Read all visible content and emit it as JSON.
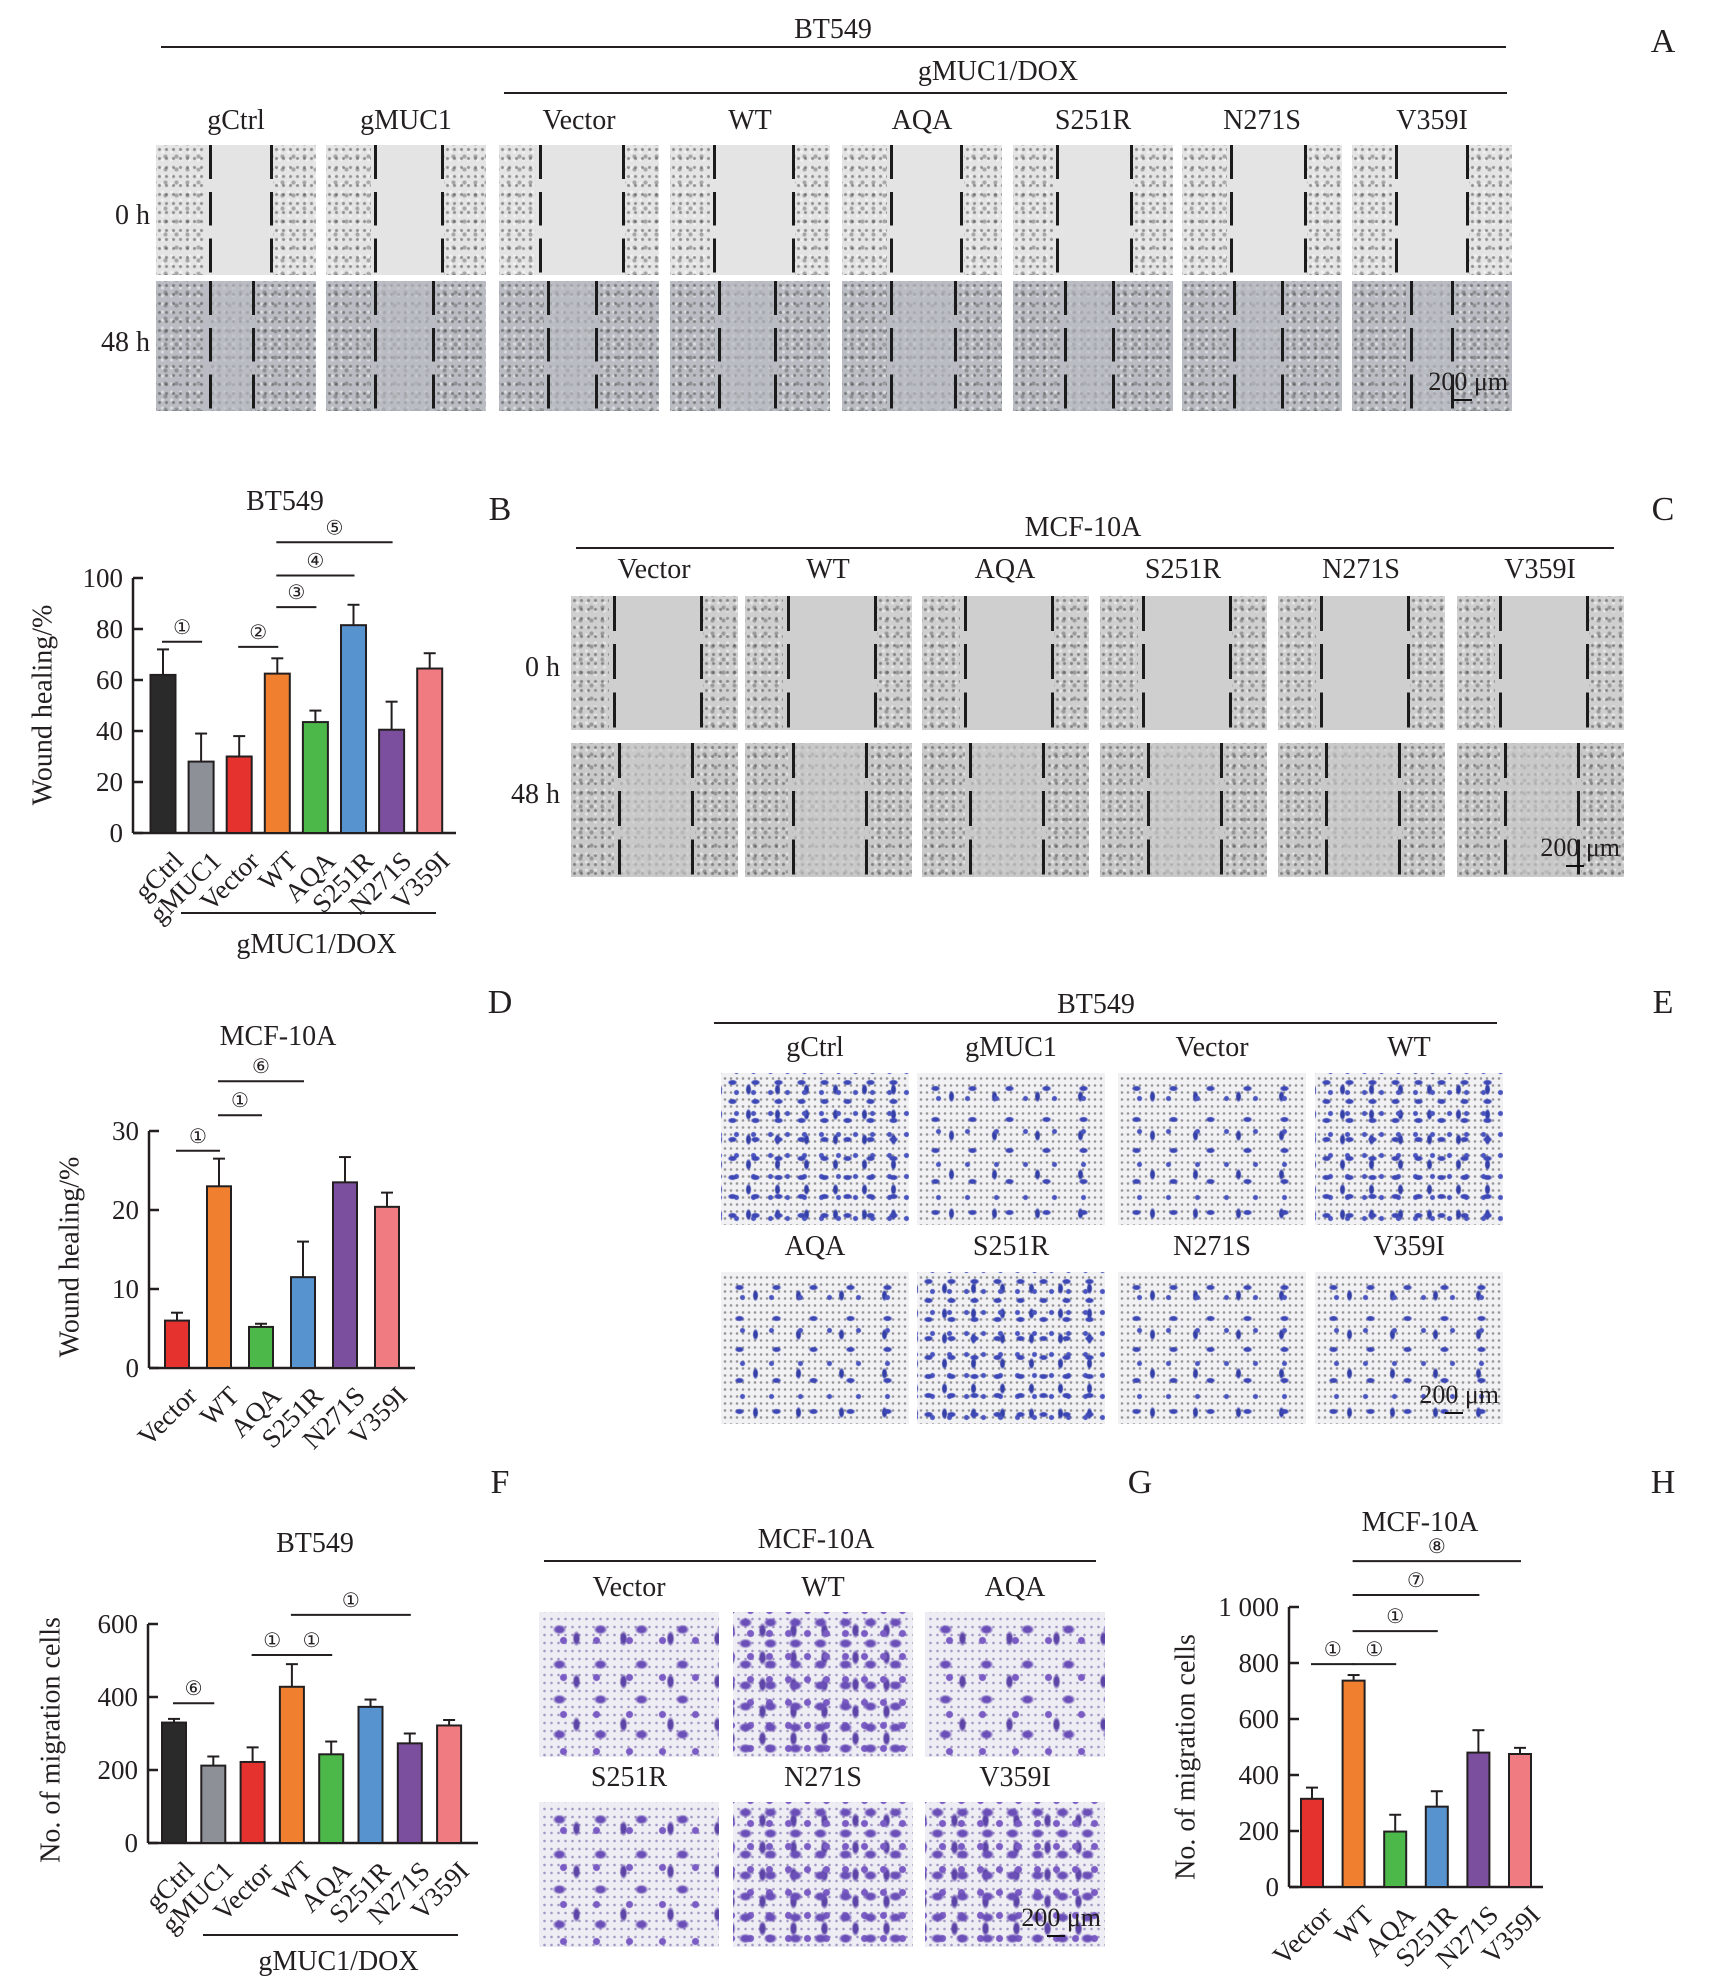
{
  "panel_letters": {
    "A": "A",
    "B": "B",
    "C": "C",
    "D": "D",
    "E": "E",
    "F": "F",
    "G": "G",
    "H": "H"
  },
  "panel_a": {
    "title": "BT549",
    "subtitle": "gMUC1/DOX",
    "columns": [
      "gCtrl",
      "gMUC1",
      "Vector",
      "WT",
      "AQA",
      "S251R",
      "N271S",
      "V359I"
    ],
    "rows": [
      "0 h",
      "48 h"
    ],
    "scale_bar": "200 μm"
  },
  "panel_c": {
    "title": "MCF-10A",
    "columns": [
      "Vector",
      "WT",
      "AQA",
      "S251R",
      "N271S",
      "V359I"
    ],
    "rows": [
      "0 h",
      "48 h"
    ],
    "scale_bar": "200 μm"
  },
  "panel_e": {
    "title": "BT549",
    "columns_top": [
      "gCtrl",
      "gMUC1",
      "Vector",
      "WT"
    ],
    "columns_bottom": [
      "AQA",
      "S251R",
      "N271S",
      "V359I"
    ],
    "scale_bar": "200 μm"
  },
  "panel_g": {
    "title": "MCF-10A",
    "columns_top": [
      "Vector",
      "WT",
      "AQA"
    ],
    "columns_bottom": [
      "S251R",
      "N271S",
      "V359I"
    ],
    "scale_bar": "200 μm"
  },
  "chart_data": [
    {
      "panel": "B",
      "type": "bar",
      "title": "BT549",
      "xlabel": "",
      "ylabel": "Wound healing/%",
      "categories": [
        "gCtrl",
        "gMUC1",
        "Vector",
        "WT",
        "AQA",
        "S251R",
        "N271S",
        "V359I"
      ],
      "values": [
        62,
        28,
        30,
        62.5,
        43.5,
        81.5,
        40.5,
        64.5
      ],
      "errors": [
        10,
        11,
        8,
        6,
        4.5,
        8,
        11,
        6
      ],
      "colors": [
        "#2b2a2b",
        "#8d9096",
        "#e6322e",
        "#f08030",
        "#4cb84a",
        "#5794cf",
        "#7b4f9d",
        "#f07b80"
      ],
      "ylim": [
        0,
        100
      ],
      "yticks": [
        "0",
        "20",
        "40",
        "60",
        "80",
        "100"
      ],
      "group_label": "gMUC1/DOX",
      "significance": [
        {
          "label": "①",
          "from": "gCtrl",
          "to": "gMUC1"
        },
        {
          "label": "②",
          "from": "Vector",
          "to": "WT"
        },
        {
          "label": "③",
          "from": "WT",
          "to": "AQA"
        },
        {
          "label": "④",
          "from": "WT",
          "to": "S251R"
        },
        {
          "label": "⑤",
          "from": "WT",
          "to": "N271S"
        }
      ]
    },
    {
      "panel": "D",
      "type": "bar",
      "title": "MCF-10A",
      "xlabel": "",
      "ylabel": "Wound healing/%",
      "categories": [
        "Vector",
        "WT",
        "AQA",
        "S251R",
        "N271S",
        "V359I"
      ],
      "values": [
        6,
        23,
        5.2,
        11.5,
        23.5,
        20.4
      ],
      "errors": [
        1,
        3.5,
        0.4,
        4.5,
        3.2,
        1.8
      ],
      "colors": [
        "#e6322e",
        "#f08030",
        "#4cb84a",
        "#5794cf",
        "#7b4f9d",
        "#f07b80"
      ],
      "ylim": [
        0,
        30
      ],
      "yticks": [
        "0",
        "10",
        "20",
        "30"
      ],
      "significance": [
        {
          "label": "①",
          "from": "Vector",
          "to": "WT"
        },
        {
          "label": "①",
          "from": "WT",
          "to": "AQA"
        },
        {
          "label": "⑥",
          "from": "WT",
          "to": "S251R"
        }
      ]
    },
    {
      "panel": "F",
      "type": "bar",
      "title": "BT549",
      "xlabel": "",
      "ylabel": "No. of migration cells",
      "categories": [
        "gCtrl",
        "gMUC1",
        "Vector",
        "WT",
        "AQA",
        "S251R",
        "N271S",
        "V359I"
      ],
      "values": [
        330,
        212,
        222,
        428,
        243,
        373,
        273,
        322
      ],
      "errors": [
        10,
        25,
        40,
        62,
        35,
        20,
        27,
        15
      ],
      "colors": [
        "#2b2a2b",
        "#8d9096",
        "#e6322e",
        "#f08030",
        "#4cb84a",
        "#5794cf",
        "#7b4f9d",
        "#f07b80"
      ],
      "ylim": [
        0,
        600
      ],
      "yticks": [
        "0",
        "200",
        "400",
        "600"
      ],
      "group_label": "gMUC1/DOX",
      "significance": [
        {
          "label": "⑥",
          "from": "gCtrl",
          "to": "gMUC1"
        },
        {
          "label": "①",
          "from": "Vector",
          "to": "WT"
        },
        {
          "label": "①",
          "from": "WT",
          "to": "AQA"
        },
        {
          "label": "①",
          "from": "WT",
          "to": "N271S"
        }
      ]
    },
    {
      "panel": "H",
      "type": "bar",
      "title": "MCF-10A",
      "xlabel": "",
      "ylabel": "No. of migration cells",
      "categories": [
        "Vector",
        "WT",
        "AQA",
        "S251R",
        "N271S",
        "V359I"
      ],
      "values": [
        315,
        737,
        198,
        287,
        480,
        475
      ],
      "errors": [
        40,
        20,
        60,
        55,
        80,
        22
      ],
      "colors": [
        "#e6322e",
        "#f08030",
        "#4cb84a",
        "#5794cf",
        "#7b4f9d",
        "#f07b80"
      ],
      "ylim": [
        0,
        1000
      ],
      "yticks": [
        "0",
        "200",
        "400",
        "600",
        "800",
        "1 000"
      ],
      "significance": [
        {
          "label": "①",
          "from": "Vector",
          "to": "WT"
        },
        {
          "label": "①",
          "from": "WT",
          "to": "AQA"
        },
        {
          "label": "①",
          "from": "WT",
          "to": "S251R"
        },
        {
          "label": "⑦",
          "from": "WT",
          "to": "N271S"
        },
        {
          "label": "⑧",
          "from": "WT",
          "to": "V359I"
        }
      ]
    }
  ]
}
